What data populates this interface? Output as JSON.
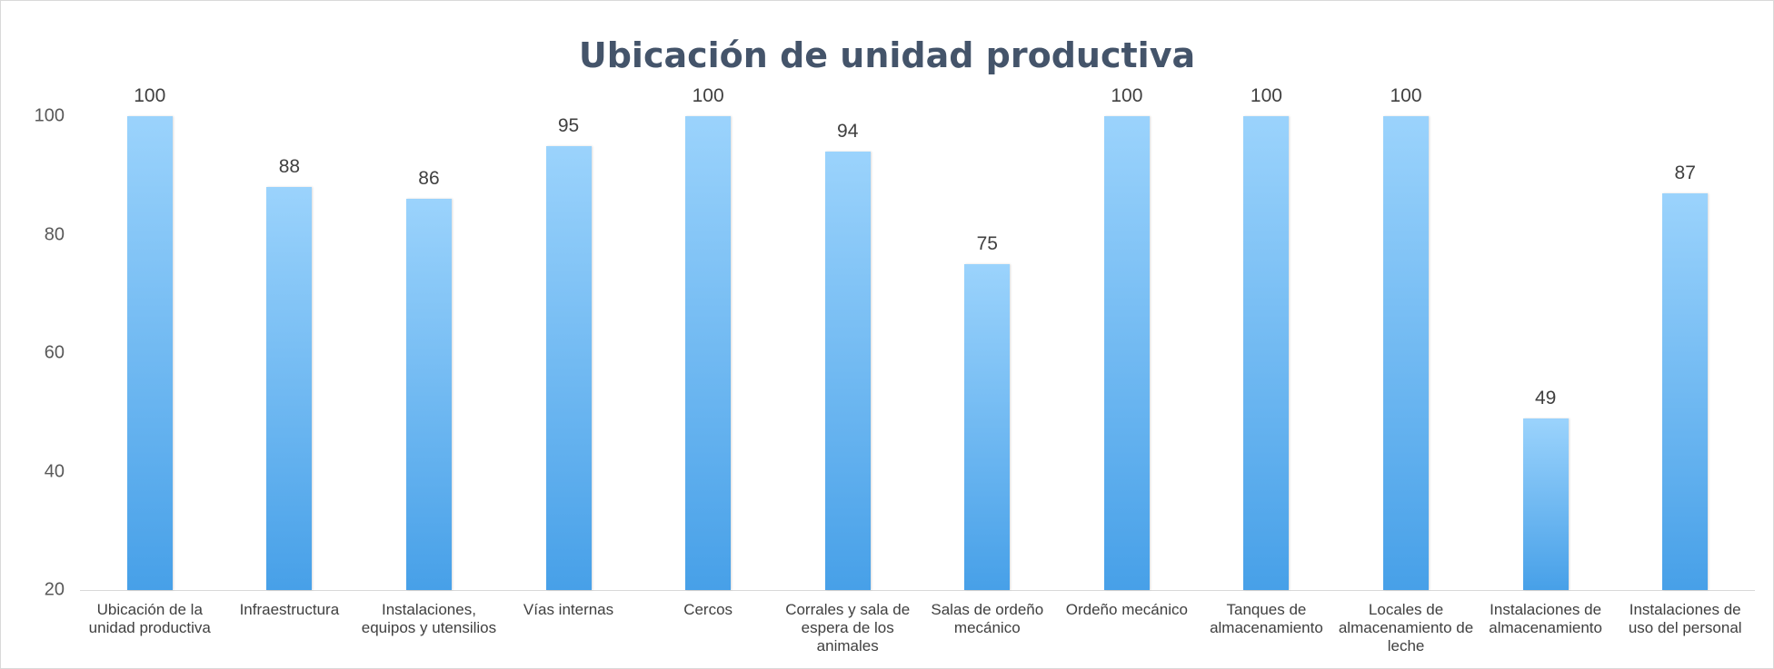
{
  "chart_data": {
    "type": "bar",
    "title": "Ubicación de unidad productiva",
    "categories": [
      "Ubicación de la unidad productiva",
      "Infraestructura",
      "Instalaciones, equipos y utensilios",
      "Vías internas",
      "Cercos",
      "Corrales y sala de espera de los animales",
      "Salas de ordeño mecánico",
      "Ordeño mecánico",
      "Tanques de almacenamiento",
      "Locales de almacenamiento de leche",
      "Instalaciones de almacenamiento",
      "Instalaciones de uso del personal"
    ],
    "values": [
      100,
      88,
      86,
      95,
      100,
      94,
      75,
      100,
      100,
      100,
      49,
      87
    ],
    "color": [
      "#9bd3fc",
      "#47a0e8"
    ],
    "ylim": [
      20,
      100
    ],
    "yticks": [
      20,
      40,
      60,
      80,
      100
    ],
    "grid": false
  }
}
